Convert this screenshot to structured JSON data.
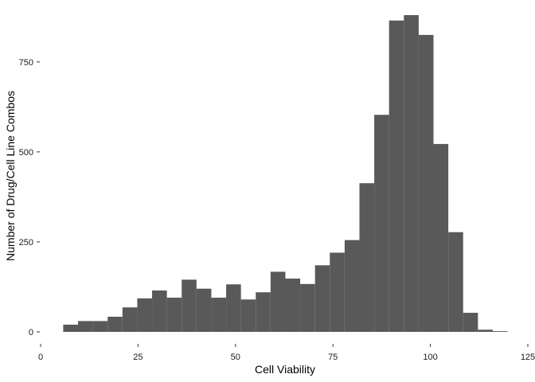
{
  "chart_data": {
    "type": "bar",
    "subtype": "histogram",
    "title": "",
    "xlabel": "Cell Viability",
    "ylabel": "Number of Drug/Cell Line Combos",
    "xlim": [
      0,
      125
    ],
    "ylim": [
      0,
      880
    ],
    "x_ticks": [
      0,
      25,
      50,
      75,
      100,
      125
    ],
    "y_ticks": [
      0,
      250,
      500,
      750
    ],
    "bin_width": 3.8,
    "bins": [
      {
        "start": 5.8,
        "count": 20
      },
      {
        "start": 9.6,
        "count": 30
      },
      {
        "start": 13.4,
        "count": 30
      },
      {
        "start": 17.2,
        "count": 42
      },
      {
        "start": 21.0,
        "count": 68
      },
      {
        "start": 24.8,
        "count": 93
      },
      {
        "start": 28.6,
        "count": 115
      },
      {
        "start": 32.4,
        "count": 95
      },
      {
        "start": 36.2,
        "count": 145
      },
      {
        "start": 40.0,
        "count": 120
      },
      {
        "start": 43.8,
        "count": 95
      },
      {
        "start": 47.6,
        "count": 132
      },
      {
        "start": 51.4,
        "count": 90
      },
      {
        "start": 55.2,
        "count": 110
      },
      {
        "start": 59.0,
        "count": 167
      },
      {
        "start": 62.8,
        "count": 148
      },
      {
        "start": 66.6,
        "count": 133
      },
      {
        "start": 70.4,
        "count": 185
      },
      {
        "start": 74.2,
        "count": 220
      },
      {
        "start": 78.0,
        "count": 255
      },
      {
        "start": 81.8,
        "count": 413
      },
      {
        "start": 85.6,
        "count": 603
      },
      {
        "start": 89.4,
        "count": 865
      },
      {
        "start": 93.2,
        "count": 880
      },
      {
        "start": 97.0,
        "count": 825
      },
      {
        "start": 100.8,
        "count": 522
      },
      {
        "start": 104.6,
        "count": 277
      },
      {
        "start": 108.4,
        "count": 53
      },
      {
        "start": 112.2,
        "count": 6
      },
      {
        "start": 116.0,
        "count": 2
      }
    ],
    "bar_color": "#595959",
    "grid": false,
    "legend": "none"
  }
}
